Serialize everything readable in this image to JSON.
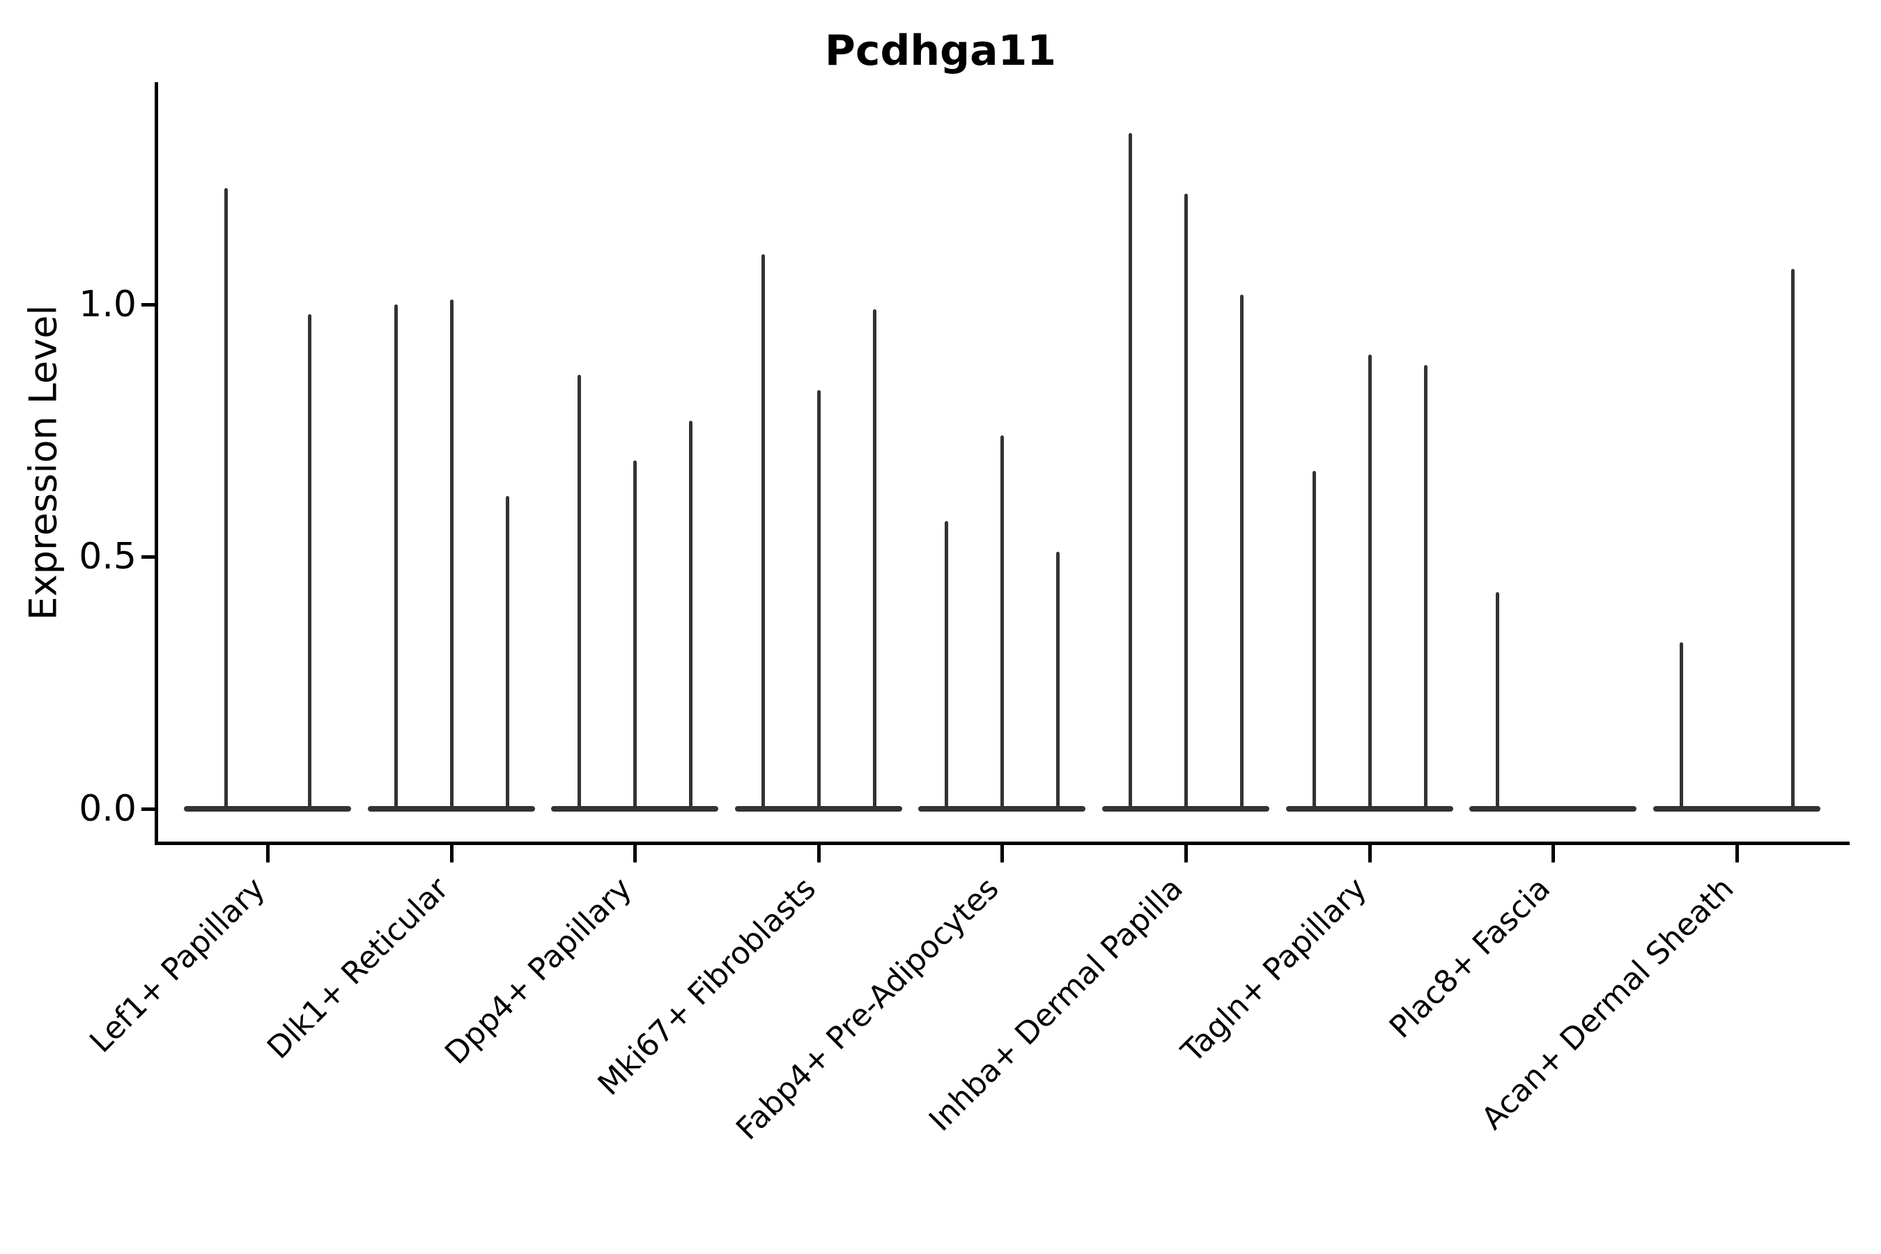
{
  "chart_data": {
    "type": "violin",
    "title": "Pcdhga11",
    "ylabel": "Expression Level",
    "xlabel": "",
    "y_ticks": [
      0.0,
      0.5,
      1.0
    ],
    "y_tick_labels": [
      "0.0",
      "0.5",
      "1.0"
    ],
    "ylim": [
      -0.07,
      1.44
    ],
    "grid": false,
    "legend": "none",
    "categories": [
      "Lef1+ Papillary",
      "Dlk1+ Reticular",
      "Dpp4+ Papillary",
      "Mki67+ Fibroblasts",
      "Fabp4+ Pre-Adipocytes",
      "Inhba+ Dermal Papilla",
      "Tagln+ Papillary",
      "Plac8+ Fascia",
      "Acan+ Dermal Sheath"
    ],
    "groups": [
      {
        "category": "Lef1+ Papillary",
        "violin_peaks": [
          1.23,
          0.98
        ]
      },
      {
        "category": "Dlk1+ Reticular",
        "violin_peaks": [
          1.0,
          1.01,
          0.62
        ]
      },
      {
        "category": "Dpp4+ Papillary",
        "violin_peaks": [
          0.86,
          0.69,
          0.77
        ]
      },
      {
        "category": "Mki67+ Fibroblasts",
        "violin_peaks": [
          1.1,
          0.83,
          0.99
        ]
      },
      {
        "category": "Fabp4+ Pre-Adipocytes",
        "violin_peaks": [
          0.57,
          0.74,
          0.51
        ]
      },
      {
        "category": "Inhba+ Dermal Papilla",
        "violin_peaks": [
          1.34,
          1.22,
          1.02
        ]
      },
      {
        "category": "Tagln+ Papillary",
        "violin_peaks": [
          0.67,
          0.9,
          0.88
        ]
      },
      {
        "category": "Plac8+ Fascia",
        "violin_peaks": [
          0.43,
          0.0,
          0.0
        ]
      },
      {
        "category": "Acan+ Dermal Sheath",
        "violin_peaks": [
          0.33,
          0.0,
          1.07
        ]
      }
    ],
    "annotations": {
      "violin_peaks_note": "Each category holds 2-3 very thin violins; peak = top of spike in Expression Level units; 0.0 = flat violin at baseline."
    },
    "colors": {
      "violin": "#333333",
      "axis": "#000000",
      "background": "#ffffff"
    }
  }
}
